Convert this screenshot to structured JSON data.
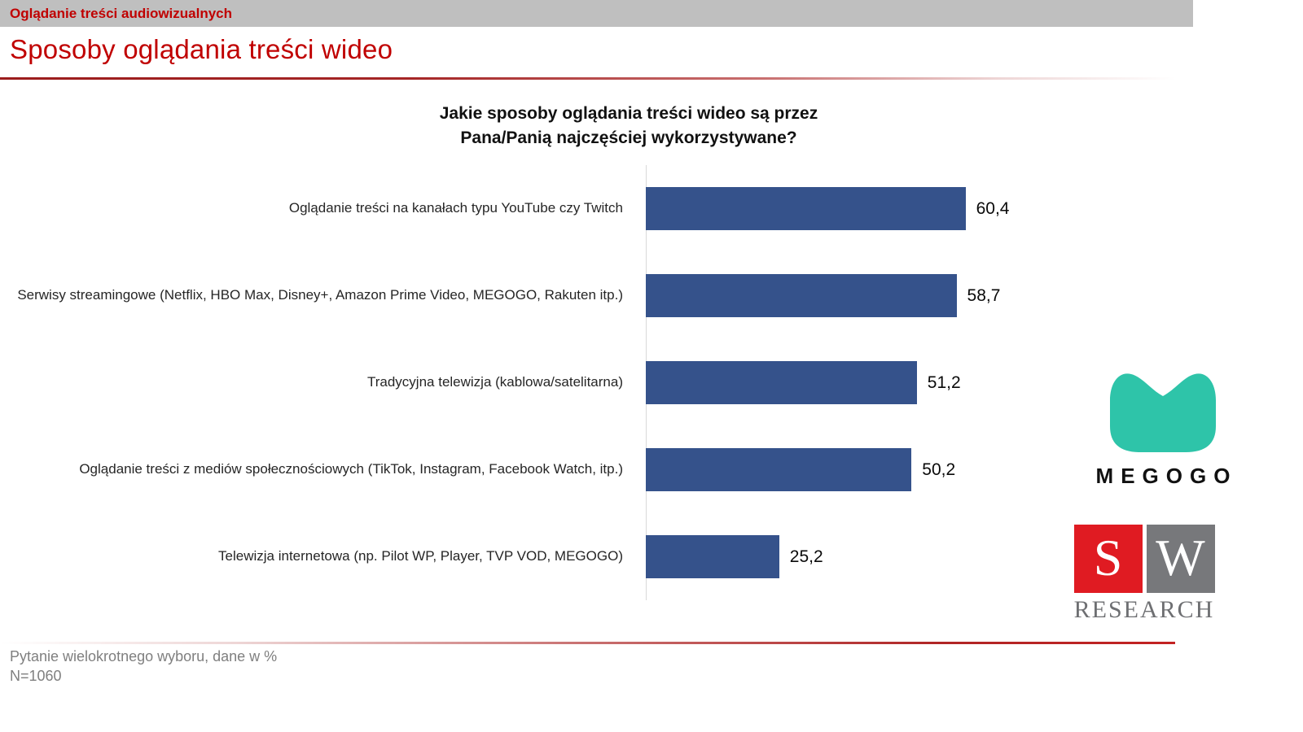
{
  "header": {
    "kicker": "Oglądanie treści audiowizualnych",
    "title": "Sposoby oglądania treści wideo"
  },
  "chart_data": {
    "type": "bar",
    "orientation": "horizontal",
    "title": "Jakie sposoby oglądania treści wideo są przez Pana/Panią najczęściej wykorzystywane?",
    "title_line1": "Jakie sposoby oglądania treści wideo są przez",
    "title_line2": "Pana/Panią najczęściej wykorzystywane?",
    "categories": [
      "Oglądanie treści na kanałach typu YouTube czy Twitch",
      "Serwisy streamingowe (Netflix, HBO Max, Disney+, Amazon Prime Video, MEGOGO, Rakuten itp.)",
      "Tradycyjna telewizja (kablowa/satelitarna)",
      "Oglądanie treści z mediów społecznościowych (TikTok, Instagram, Facebook Watch, itp.)",
      "Telewizja internetowa (np. Pilot WP, Player, TVP VOD, MEGOGO)"
    ],
    "values": [
      60.4,
      58.7,
      51.2,
      50.2,
      25.2
    ],
    "value_labels": [
      "60,4",
      "58,7",
      "51,2",
      "50,2",
      "25,2"
    ],
    "xlim": [
      0,
      100
    ],
    "grid": false,
    "legend": false,
    "bar_color": "#35528B",
    "axis_line_color": "#D9D9D9"
  },
  "logos": {
    "megogo_label": "MEGOGO",
    "megogo_color": "#2EC4A9",
    "sw_s": "S",
    "sw_w": "W",
    "sw_research": "RESEARCH",
    "sw_red": "#E01B22",
    "sw_gray": "#77787B"
  },
  "footer": {
    "note_line1": "Pytanie wielokrotnego wyboru, dane w %",
    "note_line2": "N=1060"
  },
  "colors": {
    "accent_red": "#C00000",
    "topbar_gray": "#BFBFBF"
  }
}
